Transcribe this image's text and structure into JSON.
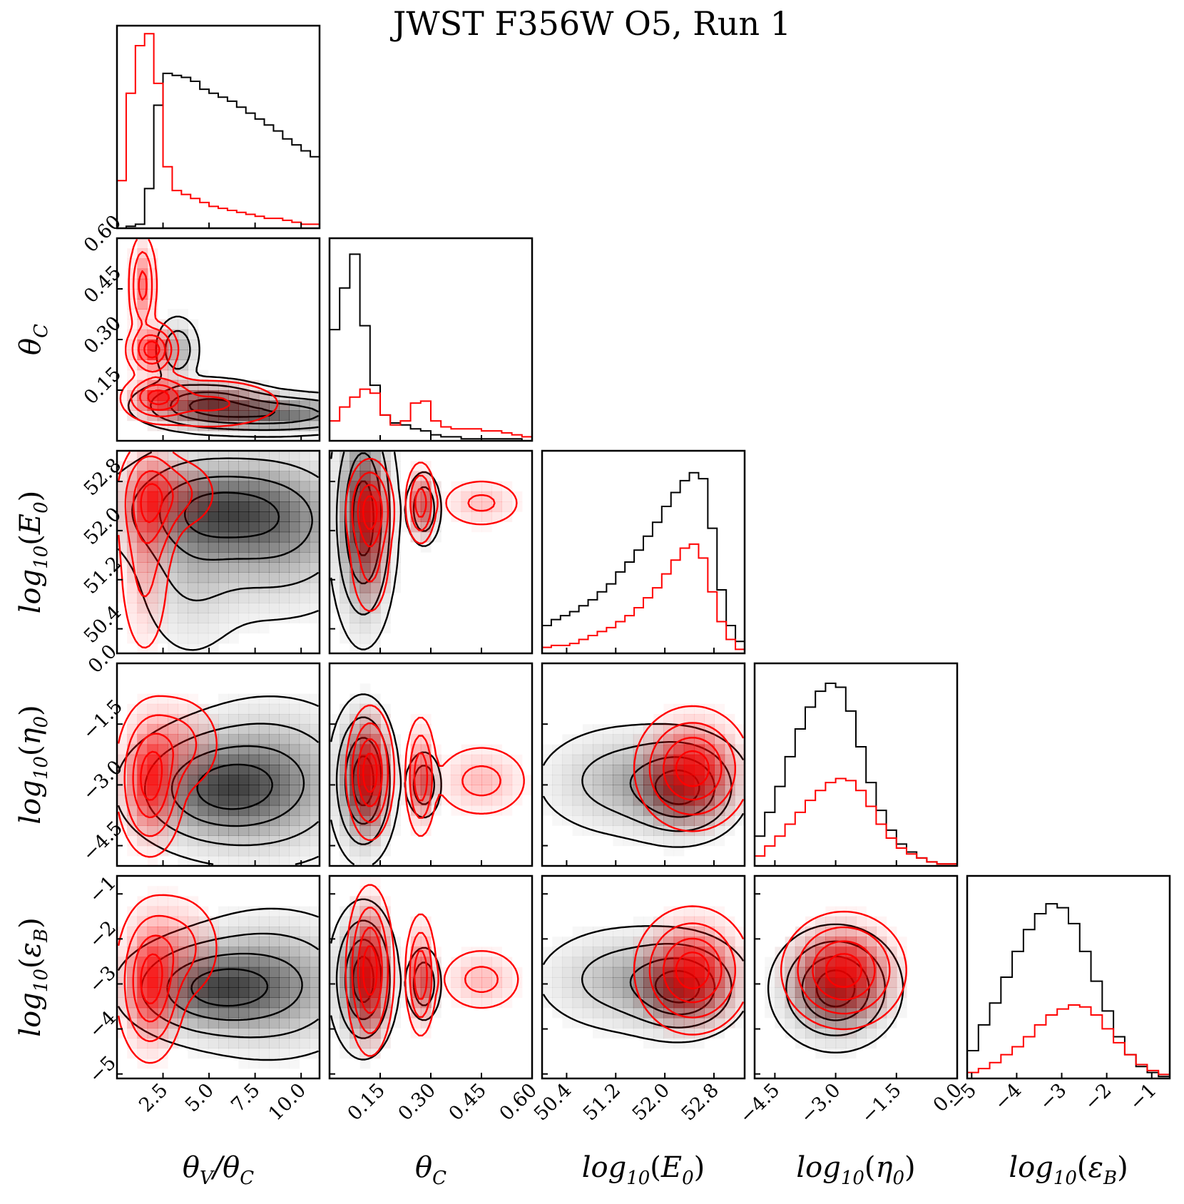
{
  "chart_data": {
    "type": "corner",
    "title": "JWST F356W O5, Run 1",
    "colors": {
      "black": "#000000",
      "red": "#ff0000",
      "red_fill": "#ff0000",
      "grey_fill": "#000000"
    },
    "parameters": [
      {
        "key": "theta_ratio",
        "label": "θV/θC",
        "range": [
          0.0,
          11.0
        ],
        "ticks": [
          2.5,
          5.0,
          7.5,
          10.0
        ],
        "tick_labels": [
          "2.5",
          "5.0",
          "7.5",
          "10.0"
        ]
      },
      {
        "key": "theta_c",
        "label": "θC",
        "range": [
          0.0,
          0.6
        ],
        "ticks": [
          0.15,
          0.3,
          0.45,
          0.6
        ],
        "tick_labels": [
          "0.15",
          "0.30",
          "0.45",
          "0.60"
        ]
      },
      {
        "key": "log_e0",
        "label": "log10(E0)",
        "range": [
          50.0,
          53.3
        ],
        "ticks": [
          50.4,
          51.2,
          52.0,
          52.8
        ],
        "tick_labels": [
          "50.4",
          "51.2",
          "52.0",
          "52.8"
        ]
      },
      {
        "key": "log_eta0",
        "label": "log10(η0)",
        "range": [
          -5.0,
          0.0
        ],
        "ticks": [
          -4.5,
          -3.0,
          -1.5,
          0.0
        ],
        "tick_labels": [
          "−4.5",
          "−3.0",
          "−1.5",
          "0.0"
        ]
      },
      {
        "key": "log_eps_b",
        "label": "log10(εB)",
        "range": [
          -5.1,
          -0.6
        ],
        "ticks": [
          -5,
          -4,
          -3,
          -2,
          -1
        ],
        "tick_labels": [
          "−5",
          "−4",
          "−3",
          "−2",
          "−1"
        ]
      }
    ],
    "histograms": [
      {
        "param": "theta_ratio",
        "max": 1.0,
        "black": [
          0.0,
          0.01,
          0.02,
          0.2,
          0.62,
          0.78,
          0.77,
          0.76,
          0.74,
          0.7,
          0.68,
          0.66,
          0.64,
          0.61,
          0.58,
          0.55,
          0.52,
          0.49,
          0.45,
          0.42,
          0.39,
          0.36
        ],
        "red": [
          0.24,
          0.68,
          0.92,
          0.98,
          0.73,
          0.31,
          0.19,
          0.17,
          0.15,
          0.13,
          0.11,
          0.1,
          0.09,
          0.08,
          0.07,
          0.06,
          0.05,
          0.05,
          0.04,
          0.03,
          0.02,
          0.02
        ]
      },
      {
        "param": "theta_c",
        "max": 1.0,
        "black": [
          0.56,
          0.77,
          0.94,
          0.58,
          0.28,
          0.13,
          0.09,
          0.08,
          0.06,
          0.05,
          0.03,
          0.02,
          0.02,
          0.01,
          0.01,
          0.01,
          0.01,
          0.01,
          0.01,
          0.0
        ],
        "red": [
          0.1,
          0.17,
          0.22,
          0.26,
          0.24,
          0.13,
          0.08,
          0.1,
          0.19,
          0.2,
          0.1,
          0.07,
          0.06,
          0.06,
          0.06,
          0.05,
          0.05,
          0.04,
          0.03,
          0.02
        ]
      },
      {
        "param": "log_e0",
        "max": 1.0,
        "black": [
          0.14,
          0.17,
          0.19,
          0.21,
          0.24,
          0.27,
          0.31,
          0.35,
          0.41,
          0.46,
          0.52,
          0.59,
          0.66,
          0.74,
          0.81,
          0.87,
          0.91,
          0.88,
          0.63,
          0.32,
          0.14,
          0.06
        ],
        "red": [
          0.03,
          0.04,
          0.04,
          0.05,
          0.07,
          0.09,
          0.11,
          0.13,
          0.16,
          0.19,
          0.23,
          0.28,
          0.33,
          0.4,
          0.47,
          0.53,
          0.55,
          0.48,
          0.31,
          0.16,
          0.07,
          0.02
        ]
      },
      {
        "param": "log_eta0",
        "max": 1.0,
        "black": [
          0.15,
          0.27,
          0.4,
          0.55,
          0.69,
          0.8,
          0.88,
          0.92,
          0.9,
          0.78,
          0.6,
          0.42,
          0.28,
          0.18,
          0.11,
          0.07,
          0.04,
          0.02,
          0.01,
          0.01
        ],
        "red": [
          0.05,
          0.1,
          0.15,
          0.21,
          0.27,
          0.33,
          0.38,
          0.42,
          0.44,
          0.43,
          0.38,
          0.3,
          0.21,
          0.14,
          0.09,
          0.06,
          0.04,
          0.02,
          0.01,
          0.01
        ]
      },
      {
        "param": "log_eps_b",
        "max": 1.0,
        "black": [
          0.14,
          0.27,
          0.38,
          0.51,
          0.64,
          0.75,
          0.83,
          0.88,
          0.86,
          0.78,
          0.64,
          0.49,
          0.34,
          0.21,
          0.12,
          0.06,
          0.03,
          0.01
        ],
        "red": [
          0.03,
          0.05,
          0.08,
          0.12,
          0.16,
          0.21,
          0.27,
          0.32,
          0.35,
          0.37,
          0.36,
          0.32,
          0.25,
          0.18,
          0.12,
          0.07,
          0.04,
          0.02
        ]
      }
    ],
    "density_2d": {
      "black": [
        {
          "x": "theta_ratio",
          "y": "theta_c",
          "blobs": [
            [
              4.8,
              0.11,
              1.8,
              0.035,
              1.0
            ],
            [
              8.5,
              0.08,
              2.8,
              0.03,
              1.0
            ],
            [
              3.3,
              0.27,
              0.6,
              0.05,
              0.55
            ]
          ]
        },
        {
          "x": "theta_ratio",
          "y": "log_e0",
          "blobs": [
            [
              5.5,
              52.35,
              3.0,
              0.45,
              1.0
            ],
            [
              8.5,
              52.0,
              2.8,
              0.7,
              0.8
            ],
            [
              4.0,
              51.6,
              1.6,
              0.9,
              0.4
            ]
          ]
        },
        {
          "x": "theta_ratio",
          "y": "log_eta0",
          "blobs": [
            [
              5.3,
              -3.1,
              2.4,
              0.75,
              1.0
            ],
            [
              8.5,
              -2.9,
              2.6,
              1.0,
              0.7
            ]
          ]
        },
        {
          "x": "theta_ratio",
          "y": "log_eps_b",
          "blobs": [
            [
              5.0,
              -3.1,
              2.3,
              0.55,
              1.0
            ],
            [
              8.5,
              -3.0,
              2.6,
              0.8,
              0.7
            ]
          ]
        },
        {
          "x": "theta_c",
          "y": "log_e0",
          "blobs": [
            [
              0.1,
              52.2,
              0.045,
              0.9,
              1.0
            ],
            [
              0.28,
              52.35,
              0.025,
              0.3,
              0.45
            ]
          ]
        },
        {
          "x": "theta_c",
          "y": "log_eta0",
          "blobs": [
            [
              0.1,
              -2.9,
              0.045,
              0.9,
              1.0
            ],
            [
              0.28,
              -3.0,
              0.025,
              0.4,
              0.45
            ]
          ]
        },
        {
          "x": "theta_c",
          "y": "log_eps_b",
          "blobs": [
            [
              0.1,
              -2.9,
              0.045,
              0.75,
              1.0
            ],
            [
              0.28,
              -3.0,
              0.025,
              0.4,
              0.45
            ]
          ]
        },
        {
          "x": "log_e0",
          "y": "log_eta0",
          "blobs": [
            [
              52.3,
              -3.1,
              0.45,
              0.6,
              1.0
            ],
            [
              51.5,
              -2.9,
              0.8,
              0.7,
              0.5
            ]
          ]
        },
        {
          "x": "log_e0",
          "y": "log_eps_b",
          "blobs": [
            [
              52.3,
              -3.1,
              0.45,
              0.5,
              1.0
            ],
            [
              51.5,
              -2.9,
              0.8,
              0.6,
              0.5
            ]
          ]
        },
        {
          "x": "log_eta0",
          "y": "log_eps_b",
          "blobs": [
            [
              -3.0,
              -3.1,
              0.7,
              0.6,
              1.0
            ]
          ]
        }
      ],
      "red": [
        {
          "x": "theta_ratio",
          "y": "theta_c",
          "blobs": [
            [
              1.4,
              0.46,
              0.35,
              0.07,
              0.6
            ],
            [
              1.9,
              0.27,
              0.6,
              0.035,
              1.0
            ],
            [
              2.2,
              0.13,
              0.8,
              0.03,
              0.9
            ],
            [
              5.0,
              0.11,
              2.2,
              0.04,
              0.25
            ]
          ]
        },
        {
          "x": "theta_ratio",
          "y": "log_e0",
          "blobs": [
            [
              1.8,
              52.45,
              0.75,
              0.45,
              1.0
            ],
            [
              1.5,
              51.5,
              0.7,
              0.8,
              0.4
            ],
            [
              3.0,
              52.6,
              1.2,
              0.3,
              0.45
            ]
          ]
        },
        {
          "x": "theta_ratio",
          "y": "log_eta0",
          "blobs": [
            [
              1.8,
              -2.9,
              0.8,
              0.8,
              1.0
            ],
            [
              3.2,
              -2.0,
              1.2,
              0.6,
              0.35
            ]
          ]
        },
        {
          "x": "theta_ratio",
          "y": "log_eps_b",
          "blobs": [
            [
              1.8,
              -3.0,
              0.8,
              0.75,
              1.0
            ],
            [
              3.2,
              -2.2,
              1.2,
              0.6,
              0.35
            ]
          ]
        },
        {
          "x": "theta_c",
          "y": "log_e0",
          "blobs": [
            [
              0.12,
              52.35,
              0.03,
              0.35,
              1.0
            ],
            [
              0.27,
              52.45,
              0.02,
              0.3,
              0.75
            ],
            [
              0.45,
              52.45,
              0.06,
              0.2,
              0.3
            ],
            [
              0.12,
              51.6,
              0.03,
              0.5,
              0.35
            ]
          ]
        },
        {
          "x": "theta_c",
          "y": "log_eta0",
          "blobs": [
            [
              0.12,
              -2.7,
              0.03,
              0.7,
              1.0
            ],
            [
              0.27,
              -2.8,
              0.02,
              0.65,
              0.75
            ],
            [
              0.45,
              -2.9,
              0.07,
              0.45,
              0.3
            ]
          ]
        },
        {
          "x": "theta_c",
          "y": "log_eps_b",
          "blobs": [
            [
              0.12,
              -2.7,
              0.03,
              0.8,
              1.0
            ],
            [
              0.27,
              -2.8,
              0.02,
              0.6,
              0.75
            ],
            [
              0.45,
              -2.9,
              0.06,
              0.35,
              0.3
            ]
          ]
        },
        {
          "x": "log_e0",
          "y": "log_eta0",
          "blobs": [
            [
              52.45,
              -2.6,
              0.4,
              0.65,
              1.0
            ]
          ]
        },
        {
          "x": "log_e0",
          "y": "log_eps_b",
          "blobs": [
            [
              52.45,
              -2.7,
              0.4,
              0.6,
              1.0
            ]
          ]
        },
        {
          "x": "log_eta0",
          "y": "log_eps_b",
          "blobs": [
            [
              -2.8,
              -2.7,
              0.65,
              0.55,
              1.0
            ]
          ]
        }
      ],
      "contour_levels": [
        0.8,
        0.5,
        0.22,
        0.06
      ]
    }
  }
}
